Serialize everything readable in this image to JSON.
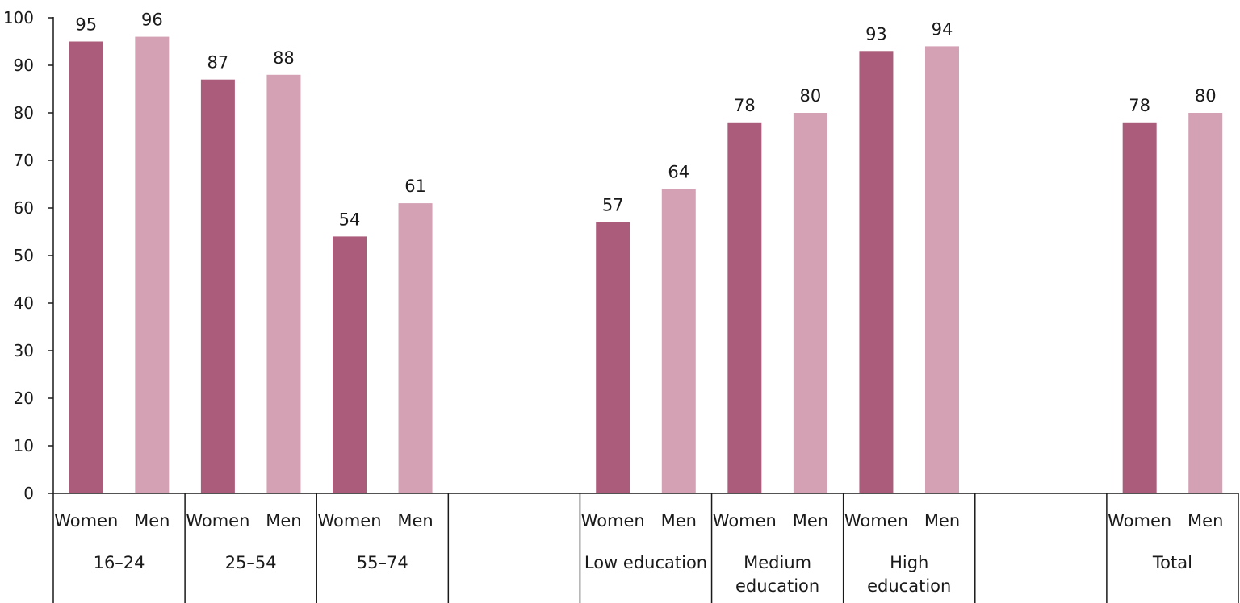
{
  "chart_data": {
    "type": "bar",
    "ylim": [
      0,
      100
    ],
    "yticks": [
      0,
      10,
      20,
      30,
      40,
      50,
      60,
      70,
      80,
      90,
      100
    ],
    "grid": false,
    "colors": {
      "Women": "#ab5c7a",
      "Men": "#d4a0b3"
    },
    "groups": [
      {
        "label": "16–24",
        "bars": [
          {
            "label": "Women",
            "value": 95
          },
          {
            "label": "Men",
            "value": 96
          }
        ]
      },
      {
        "label": "25–54",
        "bars": [
          {
            "label": "Women",
            "value": 87
          },
          {
            "label": "Men",
            "value": 88
          }
        ]
      },
      {
        "label": "55–74",
        "bars": [
          {
            "label": "Women",
            "value": 54
          },
          {
            "label": "Men",
            "value": 61
          }
        ]
      },
      {
        "label": "",
        "bars": []
      },
      {
        "label": "Low education",
        "bars": [
          {
            "label": "Women",
            "value": 57
          },
          {
            "label": "Men",
            "value": 64
          }
        ]
      },
      {
        "label": "Medium education",
        "bars": [
          {
            "label": "Women",
            "value": 78
          },
          {
            "label": "Men",
            "value": 80
          }
        ]
      },
      {
        "label": "High education",
        "bars": [
          {
            "label": "Women",
            "value": 93
          },
          {
            "label": "Men",
            "value": 94
          }
        ]
      },
      {
        "label": "",
        "bars": []
      },
      {
        "label": "Total",
        "bars": [
          {
            "label": "Women",
            "value": 78
          },
          {
            "label": "Men",
            "value": 80
          }
        ]
      }
    ]
  }
}
